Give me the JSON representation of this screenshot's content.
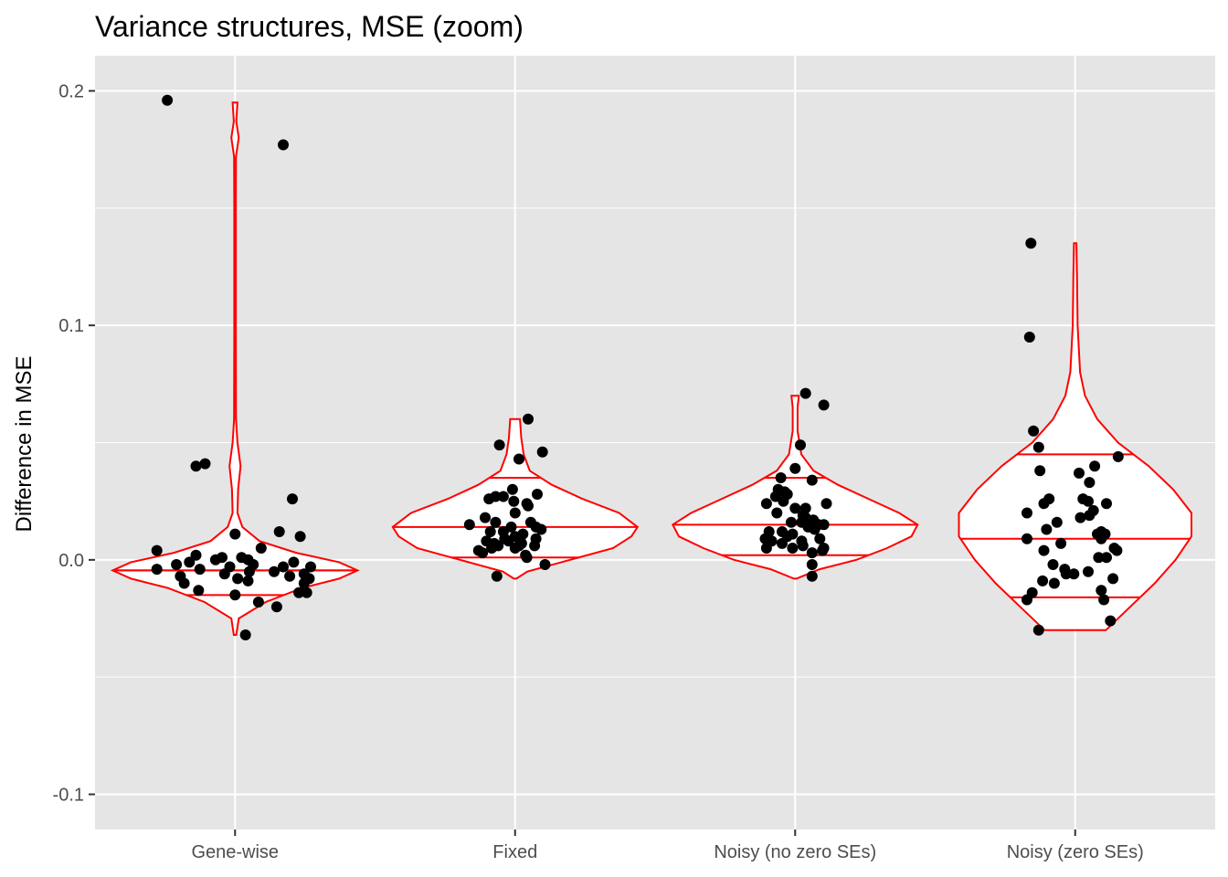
{
  "chart_data": {
    "type": "violin",
    "title": "Variance structures, MSE (zoom)",
    "xlabel": "",
    "ylabel": "Difference in MSE",
    "ylim": [
      -0.115,
      0.215
    ],
    "y_ticks": [
      -0.1,
      0.0,
      0.1,
      0.2
    ],
    "y_tick_labels": [
      "-0.1",
      "0.0",
      "0.1",
      "0.2"
    ],
    "categories": [
      "Gene-wise",
      "Fixed",
      "Noisy (no zero SEs)",
      "Noisy (zero SEs)"
    ],
    "grid": true,
    "legend": "none",
    "colors": {
      "panel": "#e5e5e5",
      "grid": "#ffffff",
      "violin": "#ff0000",
      "points": "#000000",
      "text": "#000000",
      "ticks": "#4d4d4d"
    },
    "violins": [
      {
        "category": "Gene-wise",
        "quantiles": [
          -0.015,
          -0.0045,
          -0.0045
        ],
        "profile": [
          [
            -0.032,
            0.01
          ],
          [
            -0.025,
            0.03
          ],
          [
            -0.018,
            0.25
          ],
          [
            -0.012,
            0.55
          ],
          [
            -0.008,
            0.85
          ],
          [
            -0.0045,
            1.0
          ],
          [
            -0.001,
            0.85
          ],
          [
            0.003,
            0.5
          ],
          [
            0.008,
            0.2
          ],
          [
            0.014,
            0.06
          ],
          [
            0.02,
            0.02
          ],
          [
            0.03,
            0.025
          ],
          [
            0.04,
            0.045
          ],
          [
            0.05,
            0.02
          ],
          [
            0.06,
            0.008
          ],
          [
            0.1,
            0.006
          ],
          [
            0.15,
            0.006
          ],
          [
            0.172,
            0.008
          ],
          [
            0.18,
            0.03
          ],
          [
            0.187,
            0.01
          ],
          [
            0.195,
            0.02
          ]
        ]
      },
      {
        "category": "Fixed",
        "quantiles": [
          0.001,
          0.014,
          0.035
        ],
        "profile": [
          [
            -0.008,
            0.01
          ],
          [
            -0.005,
            0.1
          ],
          [
            0.0,
            0.45
          ],
          [
            0.005,
            0.8
          ],
          [
            0.01,
            0.95
          ],
          [
            0.014,
            1.0
          ],
          [
            0.02,
            0.85
          ],
          [
            0.026,
            0.55
          ],
          [
            0.032,
            0.3
          ],
          [
            0.038,
            0.12
          ],
          [
            0.045,
            0.07
          ],
          [
            0.052,
            0.05
          ],
          [
            0.06,
            0.04
          ]
        ]
      },
      {
        "category": "Noisy (no zero SEs)",
        "quantiles": [
          0.002,
          0.015,
          0.035
        ],
        "profile": [
          [
            -0.008,
            0.01
          ],
          [
            -0.004,
            0.2
          ],
          [
            0.0,
            0.5
          ],
          [
            0.005,
            0.75
          ],
          [
            0.01,
            0.95
          ],
          [
            0.015,
            1.0
          ],
          [
            0.02,
            0.85
          ],
          [
            0.026,
            0.6
          ],
          [
            0.032,
            0.35
          ],
          [
            0.038,
            0.15
          ],
          [
            0.045,
            0.05
          ],
          [
            0.055,
            0.02
          ],
          [
            0.065,
            0.02
          ],
          [
            0.07,
            0.03
          ]
        ]
      },
      {
        "category": "Noisy (zero SEs)",
        "quantiles": [
          -0.016,
          0.009,
          0.045
        ],
        "profile": [
          [
            -0.03,
            0.25
          ],
          [
            -0.02,
            0.45
          ],
          [
            -0.01,
            0.65
          ],
          [
            0.0,
            0.82
          ],
          [
            0.01,
            0.95
          ],
          [
            0.02,
            0.95
          ],
          [
            0.03,
            0.8
          ],
          [
            0.04,
            0.6
          ],
          [
            0.05,
            0.35
          ],
          [
            0.06,
            0.18
          ],
          [
            0.07,
            0.08
          ],
          [
            0.08,
            0.04
          ],
          [
            0.1,
            0.02
          ],
          [
            0.12,
            0.015
          ],
          [
            0.135,
            0.01
          ]
        ]
      }
    ],
    "points": [
      {
        "category": "Gene-wise",
        "values": [
          0.196,
          0.177,
          0.041,
          0.04,
          0.026,
          0.012,
          0.011,
          0.01,
          0.005,
          0.004,
          0.002,
          0.001,
          0.001,
          0.0,
          0.0,
          -0.001,
          -0.001,
          -0.002,
          -0.002,
          -0.003,
          -0.003,
          -0.003,
          -0.004,
          -0.004,
          -0.005,
          -0.005,
          -0.006,
          -0.006,
          -0.007,
          -0.007,
          -0.008,
          -0.008,
          -0.009,
          -0.01,
          -0.01,
          -0.013,
          -0.014,
          -0.014,
          -0.015,
          -0.018,
          -0.02,
          -0.032
        ],
        "jitter": [
          -0.52,
          0.37,
          -0.23,
          -0.3,
          0.44,
          0.34,
          0.0,
          0.5,
          0.2,
          -0.6,
          -0.3,
          0.05,
          -0.1,
          0.1,
          -0.15,
          0.45,
          -0.35,
          0.14,
          -0.45,
          0.58,
          0.37,
          -0.04,
          -0.6,
          -0.27,
          0.11,
          0.3,
          0.53,
          -0.08,
          0.42,
          -0.42,
          0.57,
          0.02,
          0.1,
          -0.39,
          0.53,
          -0.28,
          0.49,
          0.55,
          0.0,
          0.18,
          0.32,
          0.08
        ]
      },
      {
        "category": "Fixed",
        "values": [
          0.06,
          0.049,
          0.046,
          0.043,
          0.03,
          0.028,
          0.027,
          0.027,
          0.026,
          0.025,
          0.024,
          0.023,
          0.02,
          0.018,
          0.016,
          0.016,
          0.015,
          0.014,
          0.014,
          0.013,
          0.012,
          0.012,
          0.011,
          0.01,
          0.009,
          0.009,
          0.008,
          0.008,
          0.008,
          0.007,
          0.007,
          0.006,
          0.006,
          0.006,
          0.005,
          0.005,
          0.004,
          0.003,
          0.002,
          0.001,
          -0.002,
          -0.007
        ],
        "jitter": [
          0.1,
          -0.12,
          0.21,
          0.03,
          -0.02,
          0.17,
          -0.15,
          -0.09,
          -0.2,
          -0.01,
          0.09,
          0.1,
          0.0,
          -0.23,
          0.12,
          -0.15,
          -0.35,
          0.16,
          -0.03,
          0.2,
          -0.09,
          -0.19,
          0.06,
          0.0,
          -0.08,
          0.16,
          -0.22,
          -0.05,
          0.04,
          0.05,
          -0.16,
          0.15,
          -0.13,
          0.03,
          0.0,
          -0.18,
          -0.28,
          -0.25,
          0.08,
          0.09,
          0.23,
          -0.14
        ]
      },
      {
        "category": "Noisy (no zero SEs)",
        "values": [
          0.071,
          0.066,
          0.049,
          0.039,
          0.035,
          0.034,
          0.03,
          0.029,
          0.028,
          0.027,
          0.025,
          0.024,
          0.024,
          0.022,
          0.022,
          0.02,
          0.019,
          0.018,
          0.017,
          0.016,
          0.016,
          0.015,
          0.015,
          0.014,
          0.013,
          0.012,
          0.012,
          0.011,
          0.01,
          0.009,
          0.009,
          0.008,
          0.008,
          0.007,
          0.006,
          0.005,
          0.005,
          0.005,
          0.004,
          0.003,
          -0.002,
          -0.007
        ],
        "jitter": [
          0.08,
          0.22,
          0.04,
          0.0,
          -0.11,
          0.13,
          -0.13,
          -0.08,
          -0.06,
          -0.15,
          -0.09,
          0.24,
          -0.22,
          0.08,
          0.0,
          -0.14,
          0.06,
          0.08,
          0.14,
          -0.03,
          0.05,
          0.18,
          0.22,
          0.1,
          0.15,
          -0.2,
          -0.1,
          -0.02,
          -0.06,
          -0.23,
          0.19,
          -0.18,
          0.05,
          -0.1,
          0.06,
          0.22,
          -0.22,
          -0.02,
          0.21,
          0.13,
          0.13,
          0.13
        ]
      },
      {
        "category": "Noisy (zero SEs)",
        "values": [
          0.135,
          0.095,
          0.055,
          0.048,
          0.044,
          0.04,
          0.038,
          0.037,
          0.033,
          0.026,
          0.026,
          0.025,
          0.024,
          0.024,
          0.021,
          0.02,
          0.019,
          0.018,
          0.016,
          0.013,
          0.012,
          0.011,
          0.011,
          0.009,
          0.009,
          0.007,
          0.005,
          0.004,
          0.004,
          0.001,
          0.001,
          -0.002,
          -0.004,
          -0.005,
          -0.006,
          -0.006,
          -0.008,
          -0.009,
          -0.01,
          -0.013,
          -0.014,
          -0.017,
          -0.017,
          -0.026,
          -0.03
        ],
        "jitter": [
          -0.34,
          -0.35,
          -0.32,
          -0.28,
          0.33,
          0.15,
          -0.27,
          0.03,
          0.11,
          -0.2,
          0.06,
          0.1,
          -0.24,
          0.24,
          0.14,
          -0.37,
          0.11,
          0.04,
          -0.14,
          -0.22,
          0.2,
          0.17,
          0.23,
          0.2,
          -0.37,
          -0.11,
          0.3,
          -0.24,
          0.32,
          0.18,
          0.24,
          -0.17,
          -0.08,
          0.1,
          -0.07,
          -0.01,
          0.29,
          -0.25,
          -0.16,
          0.2,
          -0.33,
          0.22,
          -0.37,
          0.27,
          -0.28
        ]
      }
    ]
  }
}
